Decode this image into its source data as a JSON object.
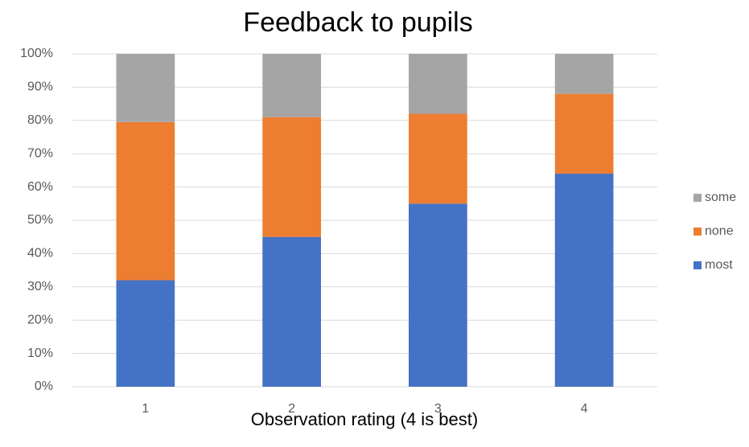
{
  "chart_data": {
    "type": "stacked_bar",
    "title": "Feedback to pupils",
    "x_label": "Observation rating (4 is best)",
    "categories": [
      "1",
      "2",
      "3",
      "4"
    ],
    "series": [
      {
        "name": "most",
        "color": "#4472c4",
        "values": [
          32,
          45,
          55,
          64
        ]
      },
      {
        "name": "none",
        "color": "#ed7d31",
        "values": [
          47.5,
          36,
          27,
          24
        ]
      },
      {
        "name": "some",
        "color": "#a5a5a5",
        "values": [
          20.5,
          19,
          18,
          12
        ]
      }
    ],
    "ylim": [
      0,
      100
    ],
    "yticks": [
      {
        "value": 0,
        "label": "0%"
      },
      {
        "value": 10,
        "label": "10%"
      },
      {
        "value": 20,
        "label": "20%"
      },
      {
        "value": 30,
        "label": "30%"
      },
      {
        "value": 40,
        "label": "40%"
      },
      {
        "value": 50,
        "label": "50%"
      },
      {
        "value": 60,
        "label": "60%"
      },
      {
        "value": 70,
        "label": "70%"
      },
      {
        "value": 80,
        "label": "80%"
      },
      {
        "value": 90,
        "label": "90%"
      },
      {
        "value": 100,
        "label": "100%"
      }
    ],
    "grid": true,
    "legend": "right"
  }
}
